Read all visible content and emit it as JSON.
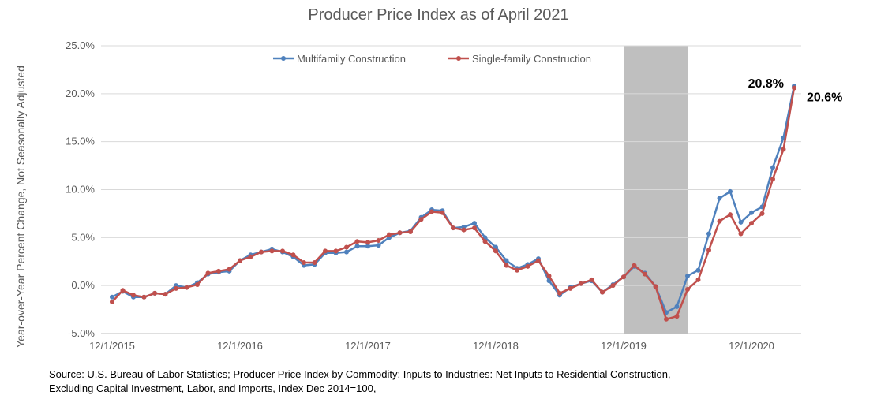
{
  "chart_data": {
    "type": "line",
    "title": "Producer Price Index as of April 2021",
    "ylabel": "Year-over-Year Percent Change, Not Seasonally Adjusted",
    "xlabel": "",
    "ylim": [
      -5,
      25
    ],
    "y_ticks": [
      "25.0%",
      "20.0%",
      "15.0%",
      "10.0%",
      "5.0%",
      "0.0%",
      "-5.0%"
    ],
    "y_tick_values": [
      25,
      20,
      15,
      10,
      5,
      0,
      -5
    ],
    "x_tick_labels": [
      "12/1/2015",
      "12/1/2016",
      "12/1/2017",
      "12/1/2018",
      "12/1/2019",
      "12/1/2020"
    ],
    "x_tick_positions": [
      0,
      12,
      24,
      36,
      48,
      60
    ],
    "x_range": [
      0,
      67
    ],
    "recession_shade": {
      "start": 48,
      "end": 54
    },
    "grid": true,
    "legend_position": "top",
    "series": [
      {
        "name": "Multifamily Construction",
        "color": "#4f81bd",
        "values": [
          -1.2,
          -0.6,
          -1.2,
          -1.2,
          -0.8,
          -0.9,
          0.0,
          -0.2,
          0.3,
          1.2,
          1.4,
          1.5,
          2.6,
          3.2,
          3.5,
          3.8,
          3.5,
          3.0,
          2.1,
          2.2,
          3.4,
          3.4,
          3.5,
          4.1,
          4.1,
          4.2,
          5.0,
          5.5,
          5.7,
          7.1,
          7.9,
          7.8,
          6.0,
          6.1,
          6.5,
          5.0,
          4.0,
          2.6,
          1.8,
          2.2,
          2.8,
          0.5,
          -1.0,
          -0.2,
          0.2,
          0.5,
          -0.7,
          0.1,
          0.9,
          2.0,
          1.3,
          -0.1,
          -2.8,
          -2.2,
          1.0,
          1.6,
          5.4,
          9.1,
          9.8,
          6.6,
          7.6,
          8.2,
          12.3,
          15.4,
          20.8
        ]
      },
      {
        "name": "Single-family Construction",
        "color": "#c0504d",
        "values": [
          -1.7,
          -0.5,
          -1.0,
          -1.2,
          -0.8,
          -0.9,
          -0.3,
          -0.2,
          0.1,
          1.3,
          1.5,
          1.7,
          2.6,
          3.0,
          3.5,
          3.6,
          3.6,
          3.2,
          2.4,
          2.4,
          3.6,
          3.6,
          4.0,
          4.6,
          4.5,
          4.7,
          5.3,
          5.5,
          5.6,
          6.9,
          7.7,
          7.6,
          6.0,
          5.8,
          6.0,
          4.6,
          3.6,
          2.1,
          1.6,
          2.0,
          2.6,
          1.0,
          -0.8,
          -0.3,
          0.2,
          0.6,
          -0.7,
          0.0,
          0.9,
          2.1,
          1.2,
          -0.1,
          -3.5,
          -3.2,
          -0.4,
          0.6,
          3.7,
          6.7,
          7.4,
          5.4,
          6.5,
          7.5,
          11.1,
          14.2,
          20.6
        ]
      }
    ],
    "annotations": [
      {
        "text": "20.8%",
        "series": 0
      },
      {
        "text": "20.6%",
        "series": 1
      }
    ]
  },
  "source_text": "Source: U.S. Bureau of Labor Statistics; Producer Price Index by Commodity:  Inputs to Industries: Net Inputs to Residential Construction, Excluding Capital Investment, Labor, and Imports, Index Dec 2014=100,"
}
